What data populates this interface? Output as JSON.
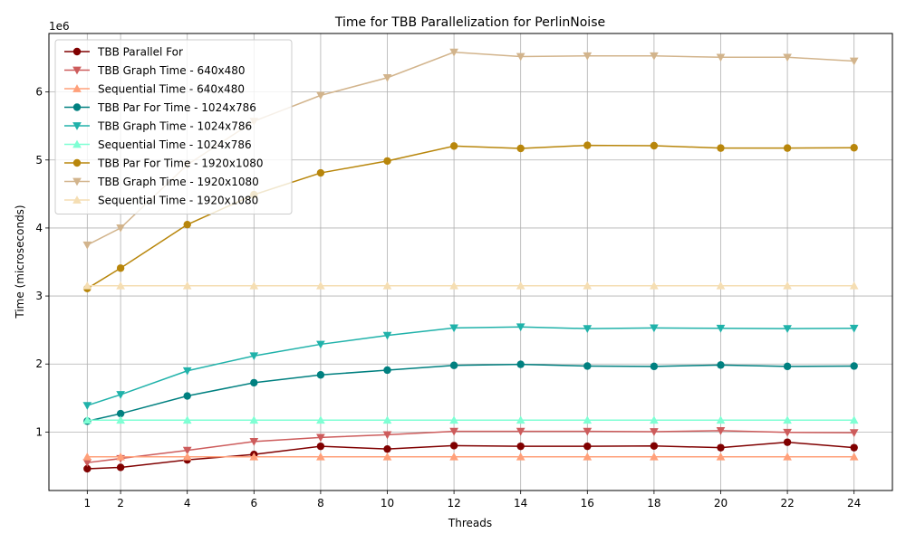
{
  "chart_data": {
    "type": "line",
    "title": "Time for TBB Parallelization for PerlinNoise",
    "xlabel": "Threads",
    "ylabel": "Time (microseconds)",
    "y_multiplier_label": "1e6",
    "x": [
      1,
      2,
      4,
      6,
      8,
      10,
      12,
      14,
      16,
      18,
      20,
      22,
      24
    ],
    "xticks": [
      1,
      2,
      4,
      6,
      8,
      10,
      12,
      14,
      16,
      18,
      20,
      22,
      24
    ],
    "yticks": [
      1,
      2,
      3,
      4,
      5,
      6
    ],
    "xlim": [
      -0.15,
      25.15
    ],
    "ylim": [
      0.14,
      6.86
    ],
    "grid": true,
    "legend_position": "top-left",
    "series": [
      {
        "name": "TBB Parallel For",
        "color": "#800000",
        "marker": "circle",
        "values": [
          0.46,
          0.48,
          0.59,
          0.67,
          0.79,
          0.75,
          0.8,
          0.79,
          0.79,
          0.795,
          0.77,
          0.85,
          0.77
        ]
      },
      {
        "name": "TBB Graph Time - 640x480",
        "color": "#cd5c5c",
        "marker": "triangle-down",
        "values": [
          0.55,
          0.61,
          0.73,
          0.86,
          0.92,
          0.96,
          1.01,
          1.01,
          1.01,
          1.005,
          1.02,
          0.995,
          0.99
        ]
      },
      {
        "name": "Sequential Time - 640x480",
        "color": "#ffa07a",
        "marker": "triangle-up",
        "values": [
          0.635,
          0.635,
          0.635,
          0.635,
          0.635,
          0.635,
          0.635,
          0.635,
          0.635,
          0.635,
          0.635,
          0.635,
          0.635
        ]
      },
      {
        "name": "TBB Par For Time - 1024x786",
        "color": "#008080",
        "marker": "circle",
        "values": [
          1.16,
          1.27,
          1.53,
          1.725,
          1.84,
          1.91,
          1.98,
          1.995,
          1.97,
          1.965,
          1.985,
          1.965,
          1.97
        ]
      },
      {
        "name": "TBB Graph Time - 1024x786",
        "color": "#20b2aa",
        "marker": "triangle-down",
        "values": [
          1.39,
          1.55,
          1.9,
          2.12,
          2.29,
          2.42,
          2.53,
          2.545,
          2.52,
          2.53,
          2.525,
          2.52,
          2.525
        ]
      },
      {
        "name": "Sequential Time - 1024x786",
        "color": "#7fffd4",
        "marker": "triangle-up",
        "values": [
          1.175,
          1.175,
          1.175,
          1.175,
          1.175,
          1.175,
          1.175,
          1.175,
          1.175,
          1.175,
          1.175,
          1.175,
          1.175
        ]
      },
      {
        "name": "TBB Par For Time - 1920x1080",
        "color": "#b8860b",
        "marker": "circle",
        "values": [
          3.11,
          3.41,
          4.05,
          4.49,
          4.81,
          4.985,
          5.205,
          5.17,
          5.215,
          5.21,
          5.175,
          5.175,
          5.18
        ]
      },
      {
        "name": "TBB Graph Time - 1920x1080",
        "color": "#d2b48c",
        "marker": "triangle-down",
        "values": [
          3.75,
          4.0,
          4.93,
          5.57,
          5.95,
          6.21,
          6.585,
          6.52,
          6.53,
          6.53,
          6.51,
          6.51,
          6.455
        ]
      },
      {
        "name": "Sequential Time - 1920x1080",
        "color": "#f5deb3",
        "marker": "triangle-up",
        "values": [
          3.15,
          3.15,
          3.15,
          3.15,
          3.15,
          3.15,
          3.15,
          3.15,
          3.15,
          3.15,
          3.15,
          3.15,
          3.15
        ]
      }
    ]
  }
}
